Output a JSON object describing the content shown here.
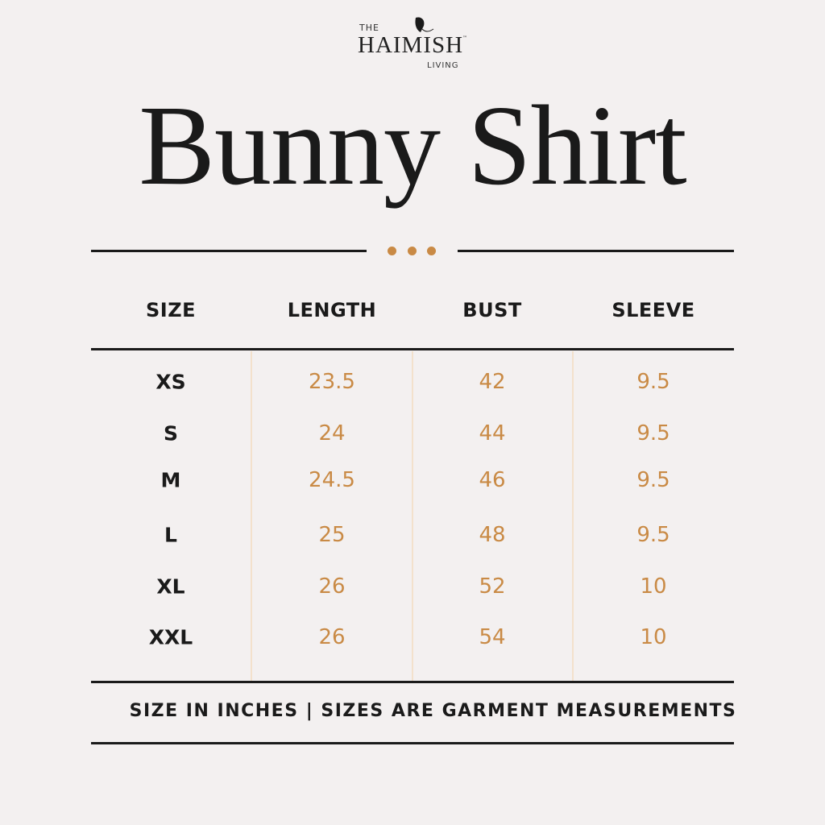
{
  "brand": {
    "line1": "THE",
    "name": "HAIMISH",
    "tm": "™",
    "line3": "LIVING"
  },
  "title": "Bunny Shirt",
  "colors": {
    "accent": "#c98a45",
    "divider": "#1a1a1a",
    "column_line": "#f3e1cc",
    "background": "#f3f0f0"
  },
  "table": {
    "headers": [
      "SIZE",
      "LENGTH",
      "BUST",
      "SLEEVE"
    ],
    "rows": [
      [
        "XS",
        "23.5",
        "42",
        "9.5"
      ],
      [
        "S",
        "24",
        "44",
        "9.5"
      ],
      [
        "M",
        "24.5",
        "46",
        "9.5"
      ],
      [
        "L",
        "25",
        "48",
        "9.5"
      ],
      [
        "XL",
        "26",
        "52",
        "10"
      ],
      [
        "XXL",
        "26",
        "54",
        "10"
      ]
    ]
  },
  "footer": "SIZE IN INCHES | SIZES ARE GARMENT MEASUREMENTS"
}
